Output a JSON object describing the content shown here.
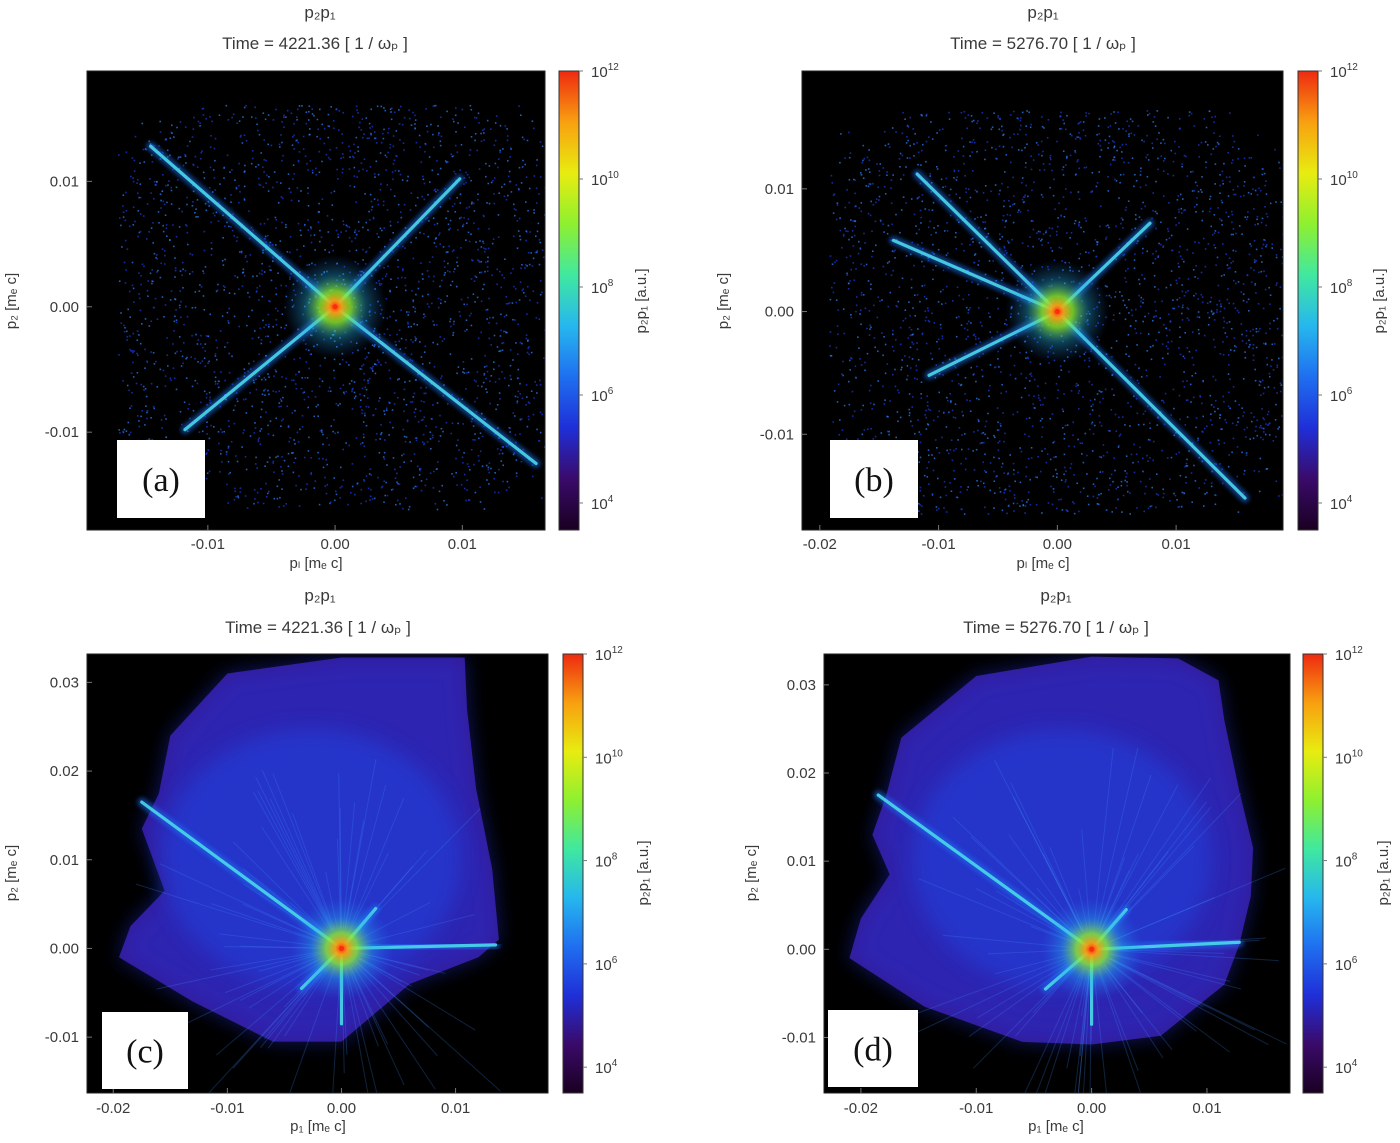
{
  "chart_data": [
    {
      "type": "heatmap",
      "panel_label": "(a)",
      "title": "p₂p₁",
      "subtitle": {
        "prefix": "Time = ",
        "value": "4221.36",
        "unit": "[ 1 / ωₚ ]"
      },
      "xlabel": "pₗ [mₑ c]",
      "ylabel": "p₂ [mₑ c]",
      "colorbar_label": "p₂p₁ [a.u.]",
      "xlim": [
        -0.0195,
        0.0165
      ],
      "ylim": [
        -0.0178,
        0.0188
      ],
      "xticks": [
        -0.01,
        0.0,
        0.01
      ],
      "xtick_labels": [
        "-0.01",
        "0.00",
        "0.01"
      ],
      "yticks": [
        -0.01,
        0.0,
        0.01
      ],
      "ytick_labels": [
        "-0.01",
        "0.00",
        "0.01"
      ],
      "color_scale": "log",
      "crange": [
        3160.0,
        1000000000000.0
      ],
      "cticks": [
        4,
        6,
        8,
        10,
        12
      ],
      "colormap": [
        "#1a0020",
        "#3a0a6a",
        "#1f2fd8",
        "#1f6ff0",
        "#26b7ee",
        "#40e8a0",
        "#8ef030",
        "#e8ec10",
        "#f8a010",
        "#ee2a10"
      ],
      "shape": "x",
      "center": [
        0.0,
        0.0
      ],
      "arms": [
        [
          -0.0145,
          0.0128
        ],
        [
          0.0158,
          -0.0125
        ],
        [
          -0.0118,
          -0.0098
        ],
        [
          0.0098,
          0.0102
        ]
      ]
    },
    {
      "type": "heatmap",
      "panel_label": "(b)",
      "title": "p₂p₁",
      "subtitle": {
        "prefix": "Time = ",
        "value": "5276.70",
        "unit": "[ 1 / ωₚ ]"
      },
      "xlabel": "pₗ [mₑ c]",
      "ylabel": "p₂ [mₑ c]",
      "colorbar_label": "p₂p₁ [a.u.]",
      "xlim": [
        -0.0215,
        0.019
      ],
      "ylim": [
        -0.0178,
        0.0196
      ],
      "xticks": [
        -0.02,
        -0.01,
        0.0,
        0.01
      ],
      "xtick_labels": [
        "-0.02",
        "-0.01",
        "0.00",
        "0.01"
      ],
      "yticks": [
        -0.01,
        0.0,
        0.01
      ],
      "ytick_labels": [
        "-0.01",
        "0.00",
        "0.01"
      ],
      "color_scale": "log",
      "crange": [
        3160.0,
        1000000000000.0
      ],
      "cticks": [
        4,
        6,
        8,
        10,
        12
      ],
      "colormap": [
        "#1a0020",
        "#3a0a6a",
        "#1f2fd8",
        "#1f6ff0",
        "#26b7ee",
        "#40e8a0",
        "#8ef030",
        "#e8ec10",
        "#f8a010",
        "#ee2a10"
      ],
      "shape": "x",
      "center": [
        0.0,
        0.0
      ],
      "arms": [
        [
          -0.0118,
          0.0112
        ],
        [
          0.0158,
          -0.0152
        ],
        [
          -0.0108,
          -0.0052
        ],
        [
          0.0078,
          0.0072
        ],
        [
          -0.0138,
          0.0058
        ]
      ]
    },
    {
      "type": "heatmap",
      "panel_label": "(c)",
      "title": "p₂p₁",
      "subtitle": {
        "prefix": "Time = ",
        "value": "4221.36",
        "unit": "[ 1 / ωₚ ]"
      },
      "xlabel": "p₁ [mₑ c]",
      "ylabel": "p₂ [mₑ c]",
      "colorbar_label": "p₂p₁ [a.u.]",
      "xlim": [
        -0.0223,
        0.0181
      ],
      "ylim": [
        -0.0163,
        0.0332
      ],
      "xticks": [
        -0.02,
        -0.01,
        0.0,
        0.01
      ],
      "xtick_labels": [
        "-0.02",
        "-0.01",
        "0.00",
        "0.01"
      ],
      "yticks": [
        -0.01,
        0.0,
        0.01,
        0.02,
        0.03
      ],
      "ytick_labels": [
        "-0.01",
        "0.00",
        "0.01",
        "0.02",
        "0.03"
      ],
      "color_scale": "log",
      "crange": [
        3160.0,
        1000000000000.0
      ],
      "cticks": [
        4,
        6,
        8,
        10,
        12
      ],
      "colormap": [
        "#1a0020",
        "#3a0a6a",
        "#1f2fd8",
        "#1f6ff0",
        "#26b7ee",
        "#40e8a0",
        "#8ef030",
        "#e8ec10",
        "#f8a010",
        "#ee2a10"
      ],
      "shape": "fan",
      "center": [
        0.0,
        0.0
      ],
      "arms": [
        [
          -0.0175,
          0.0165
        ],
        [
          0.0135,
          0.0004
        ],
        [
          0.0,
          -0.0085
        ],
        [
          0.003,
          0.0045
        ],
        [
          -0.0035,
          -0.0045
        ]
      ],
      "envelope": [
        [
          -0.0155,
          0.0065
        ],
        [
          -0.0185,
          0.0025
        ],
        [
          -0.0195,
          -0.001
        ],
        [
          -0.013,
          -0.006
        ],
        [
          -0.006,
          -0.0105
        ],
        [
          0.0,
          -0.0105
        ],
        [
          0.006,
          -0.004
        ],
        [
          0.012,
          -0.001
        ],
        [
          0.0138,
          0.001
        ],
        [
          0.0132,
          0.009
        ],
        [
          0.0118,
          0.018
        ],
        [
          0.011,
          0.027
        ],
        [
          0.0108,
          0.0328
        ],
        [
          0.0,
          0.0328
        ],
        [
          -0.01,
          0.031
        ],
        [
          -0.015,
          0.024
        ],
        [
          -0.016,
          0.0175
        ],
        [
          -0.0175,
          0.0135
        ]
      ]
    },
    {
      "type": "heatmap",
      "panel_label": "(d)",
      "title": "p₂p₁",
      "subtitle": {
        "prefix": "Time = ",
        "value": "5276.70",
        "unit": "[ 1 / ωₚ ]"
      },
      "xlabel": "p₁ [mₑ c]",
      "ylabel": "p₂ [mₑ c]",
      "colorbar_label": "p₂p₁ [a.u.]",
      "xlim": [
        -0.0232,
        0.0172
      ],
      "ylim": [
        -0.0163,
        0.0335
      ],
      "xticks": [
        -0.02,
        -0.01,
        0.0,
        0.01
      ],
      "xtick_labels": [
        "-0.02",
        "-0.01",
        "0.00",
        "0.01"
      ],
      "yticks": [
        -0.01,
        0.0,
        0.01,
        0.02,
        0.03
      ],
      "ytick_labels": [
        "-0.01",
        "0.00",
        "0.01",
        "0.02",
        "0.03"
      ],
      "color_scale": "log",
      "crange": [
        3160.0,
        1000000000000.0
      ],
      "cticks": [
        4,
        6,
        8,
        10,
        12
      ],
      "colormap": [
        "#1a0020",
        "#3a0a6a",
        "#1f2fd8",
        "#1f6ff0",
        "#26b7ee",
        "#40e8a0",
        "#8ef030",
        "#e8ec10",
        "#f8a010",
        "#ee2a10"
      ],
      "shape": "fan",
      "center": [
        0.0,
        0.0
      ],
      "arms": [
        [
          -0.0185,
          0.0175
        ],
        [
          0.0128,
          0.0008
        ],
        [
          0.0,
          -0.0085
        ],
        [
          0.003,
          0.0045
        ],
        [
          -0.004,
          -0.0045
        ]
      ],
      "envelope": [
        [
          -0.0175,
          0.0085
        ],
        [
          -0.02,
          0.0035
        ],
        [
          -0.021,
          -0.001
        ],
        [
          -0.0145,
          -0.0065
        ],
        [
          -0.006,
          -0.0105
        ],
        [
          0.0,
          -0.0108
        ],
        [
          0.006,
          -0.0098
        ],
        [
          0.0115,
          -0.004
        ],
        [
          0.0128,
          0.0005
        ],
        [
          0.0138,
          0.006
        ],
        [
          0.014,
          0.0115
        ],
        [
          0.0128,
          0.018
        ],
        [
          0.0115,
          0.026
        ],
        [
          0.011,
          0.0305
        ],
        [
          0.0075,
          0.033
        ],
        [
          0.0,
          0.0332
        ],
        [
          -0.01,
          0.031
        ],
        [
          -0.0165,
          0.024
        ],
        [
          -0.0178,
          0.0175
        ],
        [
          -0.019,
          0.013
        ]
      ]
    }
  ]
}
